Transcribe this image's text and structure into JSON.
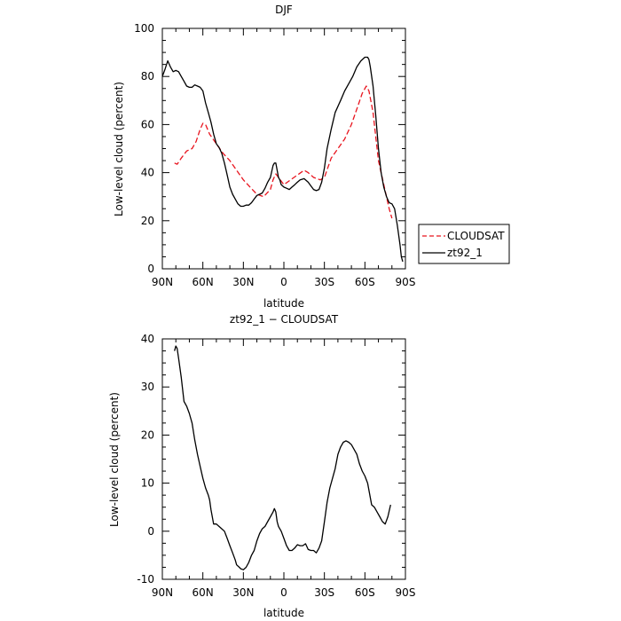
{
  "chart_data": [
    {
      "type": "line",
      "title": "DJF",
      "xlabel": "latitude",
      "ylabel": "Low-level cloud (percent)",
      "x_range": [
        90,
        -90
      ],
      "ylim": [
        0,
        100
      ],
      "x_ticks": [
        {
          "value": 90,
          "label": "90N"
        },
        {
          "value": 60,
          "label": "60N"
        },
        {
          "value": 30,
          "label": "30N"
        },
        {
          "value": 0,
          "label": "0"
        },
        {
          "value": -30,
          "label": "30S"
        },
        {
          "value": -60,
          "label": "60S"
        },
        {
          "value": -90,
          "label": "90S"
        }
      ],
      "y_ticks": [
        0,
        20,
        40,
        60,
        80,
        100
      ],
      "legend_position": "right",
      "series": [
        {
          "name": "CLOUDSAT",
          "color": "#e8141e",
          "dash": "dashed",
          "points": [
            [
              81,
              44
            ],
            [
              79,
              43.5
            ],
            [
              76,
              46
            ],
            [
              72,
              49
            ],
            [
              68,
              50
            ],
            [
              65,
              53
            ],
            [
              62,
              58
            ],
            [
              60,
              60.5
            ],
            [
              58,
              60
            ],
            [
              55,
              56
            ],
            [
              50,
              52
            ],
            [
              45,
              48
            ],
            [
              40,
              45
            ],
            [
              35,
              41
            ],
            [
              30,
              37
            ],
            [
              25,
              34
            ],
            [
              20,
              31
            ],
            [
              15,
              30
            ],
            [
              10,
              33
            ],
            [
              8,
              37
            ],
            [
              6,
              39.5
            ],
            [
              4,
              38
            ],
            [
              0,
              35
            ],
            [
              -5,
              37
            ],
            [
              -10,
              39
            ],
            [
              -15,
              41
            ],
            [
              -18,
              40
            ],
            [
              -22,
              38
            ],
            [
              -27,
              37
            ],
            [
              -30,
              38
            ],
            [
              -35,
              46
            ],
            [
              -40,
              50
            ],
            [
              -45,
              54
            ],
            [
              -50,
              60
            ],
            [
              -55,
              68
            ],
            [
              -58,
              73
            ],
            [
              -61,
              76
            ],
            [
              -63,
              74
            ],
            [
              -66,
              65
            ],
            [
              -70,
              45
            ],
            [
              -74,
              35
            ],
            [
              -78,
              25
            ],
            [
              -80,
              21
            ]
          ]
        },
        {
          "name": "zt92_1",
          "color": "#000000",
          "dash": "solid",
          "points": [
            [
              90,
              80
            ],
            [
              88,
              83
            ],
            [
              86,
              86.5
            ],
            [
              84,
              84
            ],
            [
              82,
              82
            ],
            [
              80,
              82.5
            ],
            [
              78,
              82
            ],
            [
              76,
              80
            ],
            [
              74,
              78
            ],
            [
              72,
              76
            ],
            [
              70,
              75.5
            ],
            [
              68,
              75.5
            ],
            [
              66,
              76.5
            ],
            [
              64,
              76
            ],
            [
              62,
              75.5
            ],
            [
              60,
              74
            ],
            [
              58,
              69
            ],
            [
              56,
              65
            ],
            [
              54,
              61
            ],
            [
              52,
              56
            ],
            [
              50,
              52
            ],
            [
              48,
              50.5
            ],
            [
              46,
              48
            ],
            [
              44,
              44
            ],
            [
              42,
              39
            ],
            [
              40,
              34
            ],
            [
              38,
              31
            ],
            [
              36,
              29
            ],
            [
              34,
              27
            ],
            [
              32,
              26
            ],
            [
              30,
              26
            ],
            [
              28,
              26.5
            ],
            [
              26,
              26.5
            ],
            [
              24,
              27.5
            ],
            [
              22,
              29
            ],
            [
              20,
              30.5
            ],
            [
              18,
              31
            ],
            [
              16,
              31.5
            ],
            [
              14,
              33.5
            ],
            [
              12,
              36
            ],
            [
              10,
              38
            ],
            [
              8,
              43
            ],
            [
              7,
              44
            ],
            [
              6,
              44
            ],
            [
              5,
              41
            ],
            [
              4,
              38
            ],
            [
              3,
              37
            ],
            [
              2,
              35
            ],
            [
              0,
              34
            ],
            [
              -2,
              33.5
            ],
            [
              -4,
              33
            ],
            [
              -6,
              34
            ],
            [
              -8,
              35
            ],
            [
              -10,
              36
            ],
            [
              -12,
              37
            ],
            [
              -15,
              37.5
            ],
            [
              -18,
              36
            ],
            [
              -20,
              34.5
            ],
            [
              -22,
              33
            ],
            [
              -24,
              32.5
            ],
            [
              -26,
              33
            ],
            [
              -28,
              36
            ],
            [
              -30,
              42
            ],
            [
              -32,
              50
            ],
            [
              -35,
              58
            ],
            [
              -38,
              65
            ],
            [
              -42,
              70
            ],
            [
              -45,
              74
            ],
            [
              -48,
              77
            ],
            [
              -51,
              80
            ],
            [
              -54,
              84
            ],
            [
              -57,
              86.5
            ],
            [
              -60,
              88
            ],
            [
              -62,
              88
            ],
            [
              -63,
              87
            ],
            [
              -64,
              84
            ],
            [
              -66,
              76
            ],
            [
              -68,
              64
            ],
            [
              -70,
              50
            ],
            [
              -72,
              40
            ],
            [
              -74,
              34
            ],
            [
              -76,
              30
            ],
            [
              -78,
              27.5
            ],
            [
              -80,
              27
            ],
            [
              -82,
              25
            ],
            [
              -84,
              18
            ],
            [
              -86,
              10
            ],
            [
              -87,
              5
            ],
            [
              -88,
              3
            ]
          ]
        }
      ]
    },
    {
      "type": "line",
      "title": "zt92_1 − CLOUDSAT",
      "xlabel": "latitude",
      "ylabel": "Low-level cloud (percent)",
      "x_range": [
        90,
        -90
      ],
      "ylim": [
        -10,
        40
      ],
      "x_ticks": [
        {
          "value": 90,
          "label": "90N"
        },
        {
          "value": 60,
          "label": "60N"
        },
        {
          "value": 30,
          "label": "30N"
        },
        {
          "value": 0,
          "label": "0"
        },
        {
          "value": -30,
          "label": "30S"
        },
        {
          "value": -60,
          "label": "60S"
        },
        {
          "value": -90,
          "label": "90S"
        }
      ],
      "y_ticks": [
        -10,
        0,
        10,
        20,
        30,
        40
      ],
      "series": [
        {
          "color": "#000000",
          "dash": "solid",
          "points": [
            [
              81,
              37.5
            ],
            [
              80,
              38.5
            ],
            [
              79,
              38
            ],
            [
              78,
              36
            ],
            [
              76,
              32
            ],
            [
              74,
              27
            ],
            [
              72,
              26
            ],
            [
              70,
              24.5
            ],
            [
              68,
              22.5
            ],
            [
              66,
              19
            ],
            [
              64,
              16
            ],
            [
              62,
              13.5
            ],
            [
              60,
              11
            ],
            [
              58,
              9
            ],
            [
              56,
              7.5
            ],
            [
              55,
              6.5
            ],
            [
              54,
              4.5
            ],
            [
              52,
              1.5
            ],
            [
              50,
              1.5
            ],
            [
              48,
              1
            ],
            [
              46,
              0.5
            ],
            [
              44,
              0
            ],
            [
              42,
              -1.5
            ],
            [
              40,
              -3
            ],
            [
              38,
              -4.5
            ],
            [
              36,
              -6
            ],
            [
              35,
              -7
            ],
            [
              33,
              -7.5
            ],
            [
              32,
              -7.8
            ],
            [
              30,
              -8
            ],
            [
              28,
              -7.5
            ],
            [
              26,
              -6.5
            ],
            [
              24,
              -5
            ],
            [
              22,
              -4
            ],
            [
              20,
              -2
            ],
            [
              18,
              -0.5
            ],
            [
              16,
              0.5
            ],
            [
              14,
              1
            ],
            [
              12,
              2
            ],
            [
              10,
              3
            ],
            [
              8,
              4
            ],
            [
              7,
              4.7
            ],
            [
              6,
              4
            ],
            [
              5,
              2
            ],
            [
              4,
              1
            ],
            [
              2,
              0
            ],
            [
              0,
              -1.5
            ],
            [
              -2,
              -3
            ],
            [
              -4,
              -4
            ],
            [
              -6,
              -4
            ],
            [
              -8,
              -3.5
            ],
            [
              -10,
              -2.8
            ],
            [
              -12,
              -3
            ],
            [
              -14,
              -3
            ],
            [
              -16,
              -2.6
            ],
            [
              -18,
              -3.8
            ],
            [
              -20,
              -4
            ],
            [
              -22,
              -4
            ],
            [
              -24,
              -4.5
            ],
            [
              -26,
              -3.5
            ],
            [
              -28,
              -2
            ],
            [
              -30,
              2
            ],
            [
              -32,
              6
            ],
            [
              -34,
              9
            ],
            [
              -36,
              11
            ],
            [
              -38,
              13
            ],
            [
              -40,
              16
            ],
            [
              -42,
              17.5
            ],
            [
              -44,
              18.5
            ],
            [
              -46,
              18.8
            ],
            [
              -48,
              18.5
            ],
            [
              -50,
              18
            ],
            [
              -52,
              17
            ],
            [
              -54,
              16
            ],
            [
              -56,
              14
            ],
            [
              -58,
              12.5
            ],
            [
              -60,
              11.5
            ],
            [
              -62,
              10
            ],
            [
              -64,
              7
            ],
            [
              -65,
              5.5
            ],
            [
              -67,
              5
            ],
            [
              -69,
              4
            ],
            [
              -71,
              3
            ],
            [
              -73,
              2
            ],
            [
              -75,
              1.5
            ],
            [
              -77,
              3
            ],
            [
              -79,
              5.5
            ]
          ]
        }
      ]
    }
  ]
}
